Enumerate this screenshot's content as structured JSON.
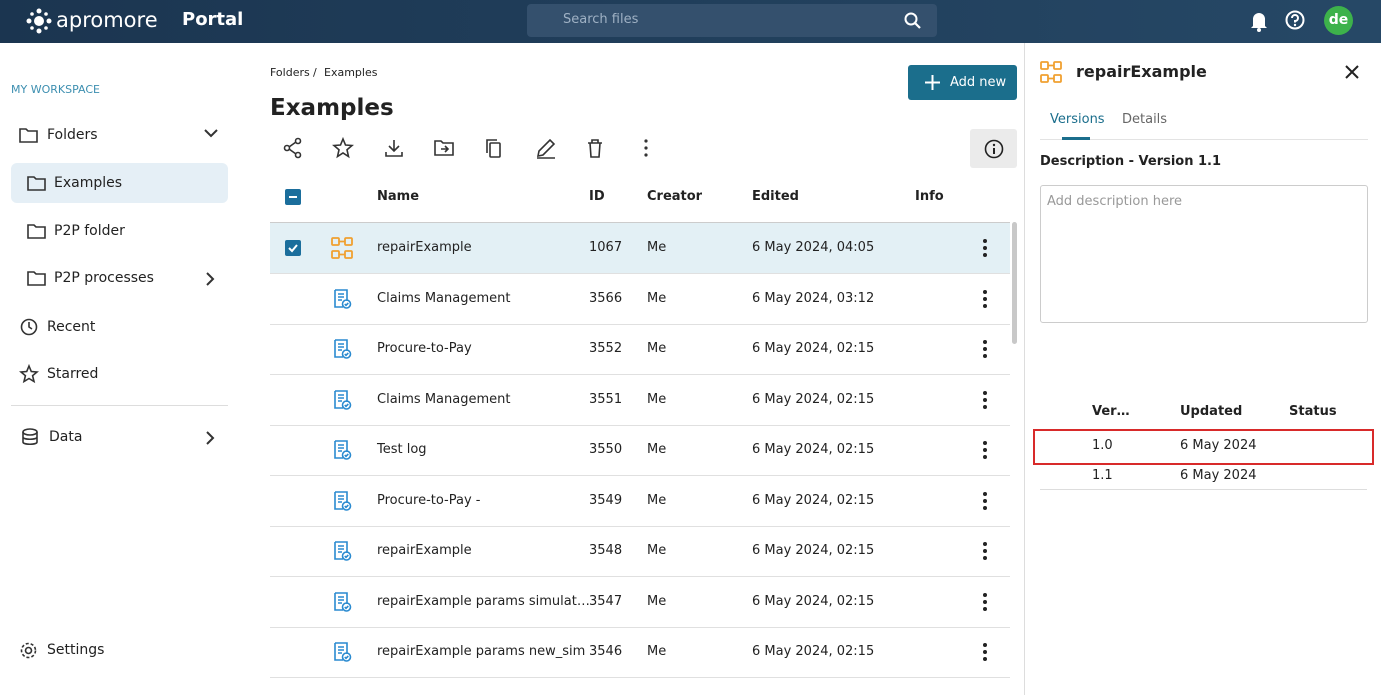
{
  "header": {
    "logo": "apromore",
    "portal": "Portal",
    "search_placeholder": "Search files",
    "avatar": "de"
  },
  "sidebar": {
    "section": "MY WORKSPACE",
    "items": [
      {
        "label": "Folders"
      },
      {
        "label": "Examples"
      },
      {
        "label": "P2P folder"
      },
      {
        "label": "P2P processes"
      },
      {
        "label": "Recent"
      },
      {
        "label": "Starred"
      },
      {
        "label": "Data"
      }
    ],
    "settings": "Settings"
  },
  "breadcrumb": {
    "items": [
      "Folders",
      "Examples"
    ],
    "separator": "/"
  },
  "page_title": "Examples",
  "add_button": "Add new",
  "table": {
    "columns": [
      "Name",
      "ID",
      "Creator",
      "Edited",
      "Info"
    ],
    "selected_row": 0,
    "rows": [
      [
        "repairExample",
        "1067",
        "Me",
        "6 May 2024, 04:05"
      ],
      [
        "Claims Management",
        "3566",
        "Me",
        "6 May 2024, 03:12"
      ],
      [
        "Procure-to-Pay",
        "3552",
        "Me",
        "6 May 2024, 02:15"
      ],
      [
        "Claims Management",
        "3551",
        "Me",
        "6 May 2024, 02:15"
      ],
      [
        "Test log",
        "3550",
        "Me",
        "6 May 2024, 02:15"
      ],
      [
        "Procure-to-Pay -",
        "3549",
        "Me",
        "6 May 2024, 02:15"
      ],
      [
        "repairExample",
        "3548",
        "Me",
        "6 May 2024, 02:15"
      ],
      [
        "repairExample params simulat…",
        "3547",
        "Me",
        "6 May 2024, 02:15"
      ],
      [
        "repairExample params new_sim",
        "3546",
        "Me",
        "6 May 2024, 02:15"
      ]
    ]
  },
  "panel": {
    "title": "repairExample",
    "tabs": [
      "Versions",
      "Details"
    ],
    "description_label": "Description - Version 1.1",
    "description_placeholder": "Add description here",
    "versions": {
      "columns": [
        "Ver…",
        "Updated",
        "Status"
      ],
      "rows": [
        [
          "1.0",
          "6 May 2024"
        ],
        [
          "1.1",
          "6 May 2024"
        ]
      ]
    }
  }
}
